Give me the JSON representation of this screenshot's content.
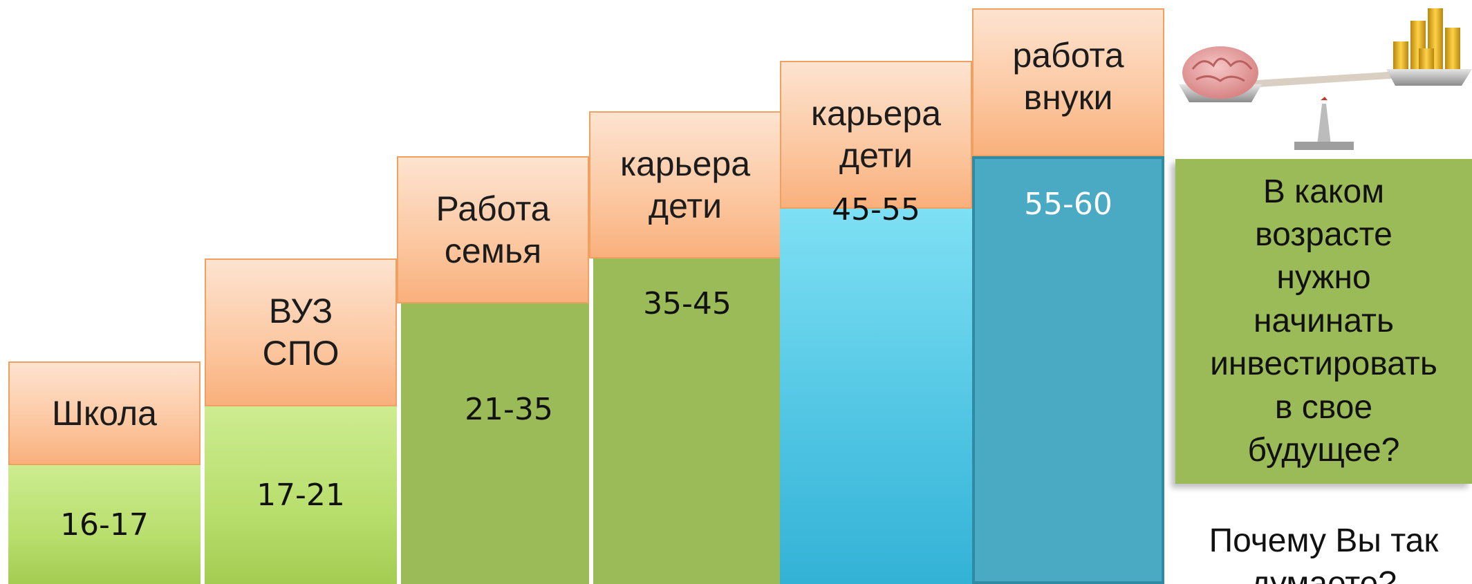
{
  "steps": [
    {
      "label": "Школа",
      "age": "16-17"
    },
    {
      "label": "ВУЗ\nСПО",
      "age": "17-21"
    },
    {
      "label": "Работа\nсемья",
      "age": "21-35"
    },
    {
      "label": "карьера\nдети",
      "age": "35-45"
    },
    {
      "label": "карьера\nдети",
      "age": "45-55"
    },
    {
      "label": "работа\nвнуки",
      "age": "55-60"
    }
  ],
  "question": "В каком\nвозрасте\nнужно\nначинать\nинвестировать\nв свое\nбудущее?",
  "followup": "Почему Вы так\nдумаете?",
  "illustration": {
    "icons": [
      "brain-icon",
      "coin-stack-icon",
      "balance-scale-icon"
    ]
  },
  "colors": {
    "header": "#fcc7a0",
    "green_light": "#b8de6c",
    "green": "#9bbb59",
    "blue_light": "#52c6e4",
    "blue": "#4aaac4"
  }
}
